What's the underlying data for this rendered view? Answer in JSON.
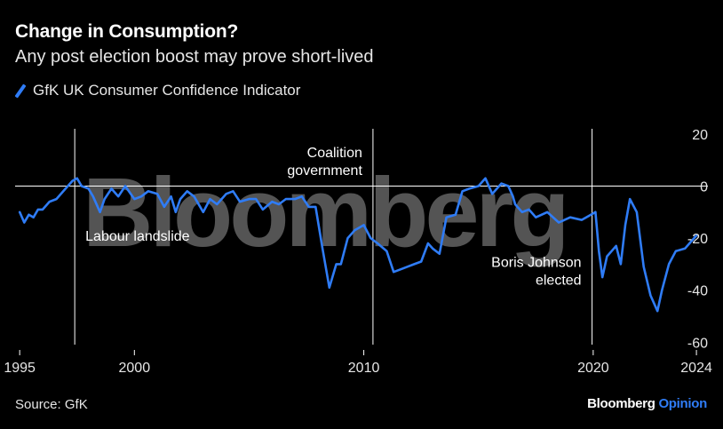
{
  "title": "Change in Consumption?",
  "subtitle": "Any post election boost may prove short-lived",
  "source": "Source: GfK",
  "brand": {
    "name": "Bloomberg",
    "suffix": "Opinion"
  },
  "watermark": "Bloomberg",
  "colors": {
    "series": "#2f7cf6",
    "background": "#000000",
    "grid": "#ffffff"
  },
  "chart_data": {
    "type": "line",
    "legend": {
      "placement": "top-left",
      "entries": [
        "GfK UK Consumer Confidence Indicator"
      ]
    },
    "x_ticks": [
      "1995",
      "2000",
      "2010",
      "2020",
      "2024"
    ],
    "x_tick_values": [
      1995,
      2000,
      2010,
      2020,
      2024.5
    ],
    "y_ticks": [
      "20",
      "0",
      "-20",
      "-40",
      "-60"
    ],
    "y_tick_values": [
      20,
      0,
      -20,
      -40,
      -60
    ],
    "ylim": [
      -65,
      22
    ],
    "xlim": [
      1994.8,
      2025
    ],
    "annotations": [
      {
        "x": 1997.4,
        "lines": [
          "Labour landslide"
        ],
        "label_y": -21,
        "anchor": "start"
      },
      {
        "x": 2010.4,
        "lines": [
          "Coalition",
          "government"
        ],
        "label_y": 11,
        "anchor": "end"
      },
      {
        "x": 2019.95,
        "lines": [
          "Boris Johnson",
          "elected"
        ],
        "label_y": -31,
        "anchor": "end"
      }
    ],
    "series": [
      {
        "name": "GfK UK Consumer Confidence Indicator",
        "x": [
          1995.0,
          1995.2,
          1995.4,
          1995.6,
          1995.8,
          1996.0,
          1996.3,
          1996.6,
          1997.0,
          1997.3,
          1997.5,
          1997.7,
          1998.0,
          1998.2,
          1998.5,
          1998.7,
          1999.0,
          1999.3,
          1999.6,
          2000.0,
          2000.3,
          2000.6,
          2001.0,
          2001.3,
          2001.6,
          2001.8,
          2002.0,
          2002.3,
          2002.6,
          2003.0,
          2003.3,
          2003.6,
          2004.0,
          2004.3,
          2004.6,
          2005.0,
          2005.3,
          2005.6,
          2006.0,
          2006.3,
          2006.6,
          2007.0,
          2007.3,
          2007.6,
          2007.9,
          2008.2,
          2008.5,
          2008.8,
          2009.0,
          2009.3,
          2009.6,
          2010.0,
          2010.3,
          2010.6,
          2011.0,
          2011.3,
          2011.6,
          2011.9,
          2012.2,
          2012.5,
          2012.8,
          2013.0,
          2013.3,
          2013.6,
          2014.0,
          2014.3,
          2014.6,
          2015.0,
          2015.3,
          2015.6,
          2016.0,
          2016.3,
          2016.5,
          2016.6,
          2016.9,
          2017.2,
          2017.5,
          2018.0,
          2018.5,
          2019.0,
          2019.5,
          2019.9,
          2020.1,
          2020.25,
          2020.4,
          2020.6,
          2020.8,
          2021.0,
          2021.2,
          2021.4,
          2021.6,
          2021.9,
          2022.2,
          2022.5,
          2022.8,
          2023.0,
          2023.3,
          2023.6,
          2024.0,
          2024.3,
          2024.5
        ],
        "values": [
          -10,
          -14,
          -11,
          -12,
          -9,
          -9,
          -6,
          -5,
          -1,
          2,
          3,
          0,
          -1,
          -4,
          -10,
          -5,
          -1,
          -4,
          0,
          -5,
          -4,
          -2,
          -3,
          -8,
          -4,
          -10,
          -5,
          -2,
          -4,
          -10,
          -5,
          -7,
          -3,
          -2,
          -6,
          -5,
          -5,
          -9,
          -6,
          -7,
          -5,
          -5,
          -4,
          -8,
          -8,
          -24,
          -39,
          -30,
          -30,
          -20,
          -17,
          -15,
          -20,
          -22,
          -25,
          -33,
          -32,
          -31,
          -30,
          -29,
          -22,
          -24,
          -26,
          -12,
          -11,
          -2,
          -1,
          0,
          3,
          -3,
          1,
          0,
          -4,
          -7,
          -10,
          -9,
          -12,
          -10,
          -14,
          -12,
          -13,
          -11,
          -10,
          -25,
          -35,
          -27,
          -25,
          -23,
          -30,
          -15,
          -5,
          -10,
          -31,
          -42,
          -48,
          -40,
          -30,
          -25,
          -24,
          -21,
          -19
        ]
      }
    ]
  }
}
